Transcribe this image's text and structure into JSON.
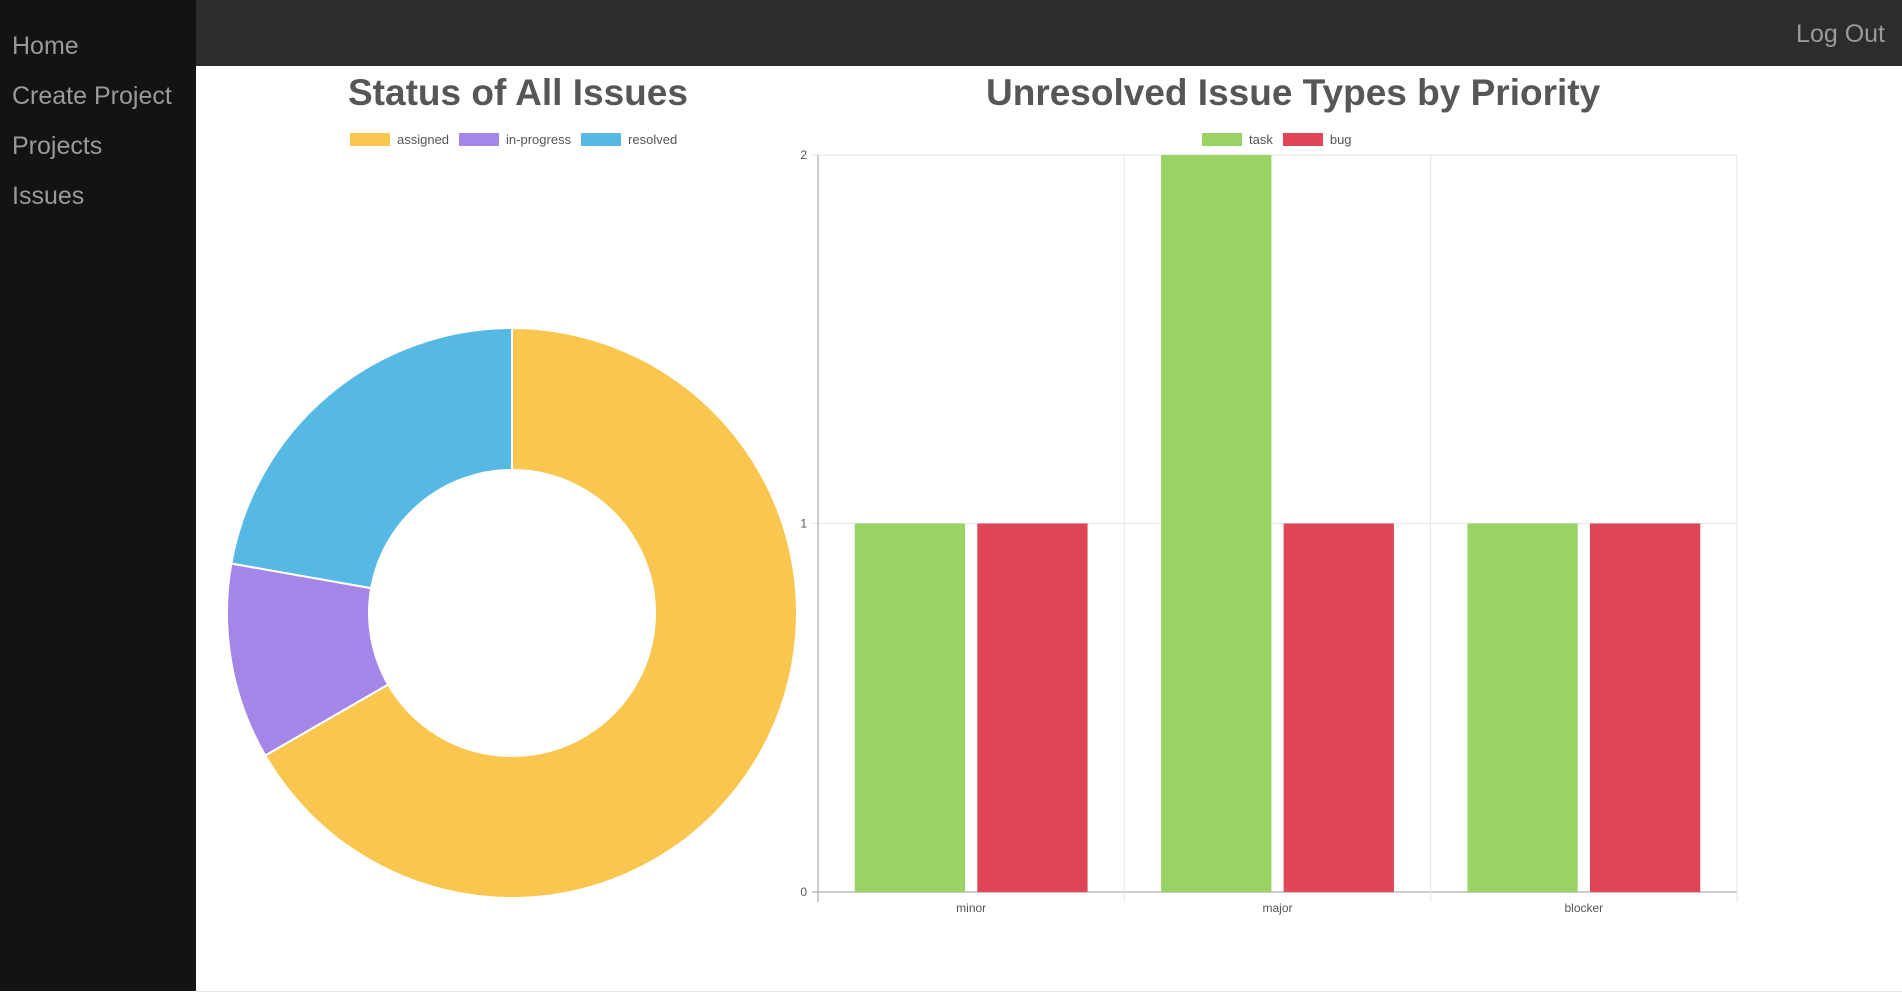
{
  "sidebar": {
    "items": [
      {
        "label": "Home"
      },
      {
        "label": "Create Project"
      },
      {
        "label": "Projects"
      },
      {
        "label": "Issues"
      }
    ]
  },
  "header": {
    "logout_label": "Log Out"
  },
  "colors": {
    "assigned": "#f9c74f",
    "in_progress": "#a685e8",
    "resolved": "#56b9e4",
    "task": "#98d363",
    "bug": "#e04457"
  },
  "chart_data": [
    {
      "type": "pie",
      "title": "Status of All Issues",
      "labels": [
        "assigned",
        "in-progress",
        "resolved"
      ],
      "values": [
        6,
        1,
        2
      ],
      "donut": true,
      "legend_position": "top"
    },
    {
      "type": "bar",
      "title": "Unresolved Issue Types by Priority",
      "categories": [
        "minor",
        "major",
        "blocker"
      ],
      "series": [
        {
          "name": "task",
          "values": [
            1,
            2,
            1
          ]
        },
        {
          "name": "bug",
          "values": [
            1,
            1,
            1
          ]
        }
      ],
      "ylim": [
        0,
        2
      ],
      "yticks": [
        "0",
        "1",
        "2"
      ],
      "grid": true,
      "legend_position": "top"
    }
  ]
}
